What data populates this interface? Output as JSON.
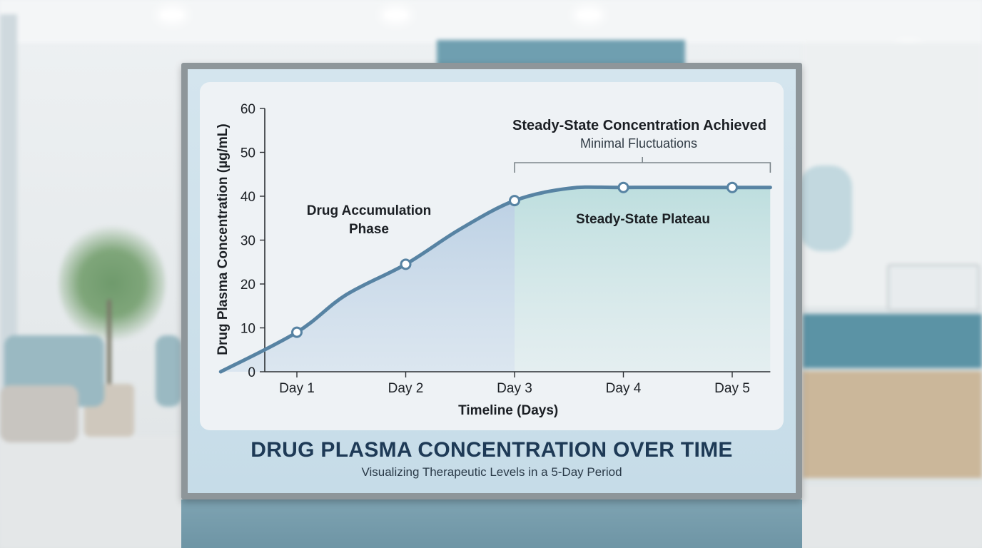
{
  "sign": {
    "title": "DRUG PLASMA CONCENTRATION OVER TIME",
    "subtitle": "Visualizing Therapeutic Levels in a 5-Day Period"
  },
  "chart_data": {
    "type": "area",
    "title": "DRUG PLASMA CONCENTRATION OVER TIME",
    "subtitle": "Visualizing Therapeutic Levels in a 5-Day Period",
    "xlabel": "Timeline (Days)",
    "ylabel": "Drug Plasma Concentration (µg/mL)",
    "categories": [
      "Day 1",
      "Day 2",
      "Day 3",
      "Day 4",
      "Day 5"
    ],
    "xlim": [
      0.3,
      5.35
    ],
    "ylim": [
      0,
      60
    ],
    "yticks": [
      0,
      10,
      20,
      30,
      40,
      50,
      60
    ],
    "grid": false,
    "series": [
      {
        "points": [
          {
            "x": 0.3,
            "y": 0,
            "marker": false
          },
          {
            "x": 1,
            "y": 9,
            "marker": true
          },
          {
            "x": 1.45,
            "y": 17.5,
            "marker": false
          },
          {
            "x": 2,
            "y": 24.5,
            "marker": true
          },
          {
            "x": 2.5,
            "y": 32.5,
            "marker": false
          },
          {
            "x": 3,
            "y": 39,
            "marker": true
          },
          {
            "x": 3.5,
            "y": 41.8,
            "marker": false
          },
          {
            "x": 4,
            "y": 42,
            "marker": true
          },
          {
            "x": 5,
            "y": 42,
            "marker": true
          },
          {
            "x": 5.35,
            "y": 42,
            "marker": false
          }
        ],
        "color": "#5783a3"
      }
    ],
    "regions": [
      {
        "from": 0.3,
        "to": 3,
        "label_lines": [
          "Drug Accumulation",
          "Phase"
        ],
        "fill": "#bed2e4"
      },
      {
        "from": 3,
        "to": 5.35,
        "label_lines": [
          "Steady-State Plateau"
        ],
        "fill": "#c5e0e2"
      }
    ],
    "bracket": {
      "from": 3,
      "to": 5.35,
      "heading": "Steady-State Concentration Achieved",
      "note": "Minimal Fluctuations"
    },
    "colors": {
      "line": "#5783a3",
      "axis": "#2b2f33",
      "text": "#1b1f24",
      "accumulation_fill": "#bed2e4",
      "plateau_fill": "#c5e0e2",
      "title": "#1e3a56"
    }
  }
}
